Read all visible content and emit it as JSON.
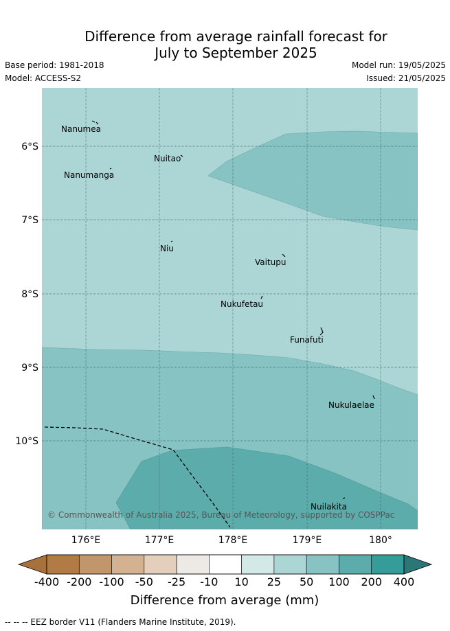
{
  "header": {
    "title_line1": "Difference from average rainfall forecast for",
    "title_line2": "July to September 2025",
    "base_period": "Base period: 1981-2018",
    "model": "Model: ACCESS-S2",
    "model_run": "Model run: 19/05/2025",
    "issued": "Issued: 21/05/2025"
  },
  "map": {
    "lon_range": [
      175.4,
      180.5
    ],
    "lat_range": [
      -5.2,
      -11.2
    ],
    "lat_ticks": [
      {
        "value": -6,
        "label": "6°S"
      },
      {
        "value": -7,
        "label": "7°S"
      },
      {
        "value": -8,
        "label": "8°S"
      },
      {
        "value": -9,
        "label": "9°S"
      },
      {
        "value": -10,
        "label": "10°S"
      }
    ],
    "lon_ticks": [
      {
        "value": 176,
        "label": "176°E"
      },
      {
        "value": 177,
        "label": "177°E"
      },
      {
        "value": 178,
        "label": "178°E"
      },
      {
        "value": 179,
        "label": "179°E"
      },
      {
        "value": 180,
        "label": "180°"
      }
    ],
    "islands": [
      {
        "name": "Nanumea",
        "lon": 176.1,
        "lat": -5.69
      },
      {
        "name": "Nuitao",
        "lon": 177.3,
        "lat": -6.11
      },
      {
        "name": "Nanumanga",
        "lon": 176.32,
        "lat": -6.29
      },
      {
        "name": "Niu",
        "lon": 177.17,
        "lat": -7.3
      },
      {
        "name": "Vaitupu",
        "lon": 178.68,
        "lat": -7.48
      },
      {
        "name": "Nukufetau",
        "lon": 178.37,
        "lat": -8.02
      },
      {
        "name": "Funafuti",
        "lon": 179.2,
        "lat": -8.52
      },
      {
        "name": "Nukulaelae",
        "lon": 179.83,
        "lat": -9.38
      },
      {
        "name": "Nuilakita",
        "lon": 179.52,
        "lat": -10.78
      }
    ],
    "copyright": "© Commonwealth of Australia 2025, Bureau of Meteorology, supported by COSPPac",
    "colors": {
      "band_25_50": "#acd6d5",
      "band_50_100": "#86c3c2",
      "band_100_200": "#5dacac",
      "grid": "#3f6f6d",
      "eez": "#000000"
    }
  },
  "colorbar": {
    "title": "Difference from average (mm)",
    "ticks": [
      "-400",
      "-200",
      "-100",
      "-50",
      "-25",
      "-10",
      "10",
      "25",
      "50",
      "100",
      "200",
      "400"
    ],
    "colors": [
      "#a8703a",
      "#b27a45",
      "#c2966b",
      "#d4b291",
      "#e4cfbc",
      "#edeae6",
      "#ffffff",
      "#d3e9e8",
      "#acd6d5",
      "#86c3c2",
      "#5dacac",
      "#369c99",
      "#2b7777"
    ]
  },
  "footnote": "-- -- -- EEZ border V11 (Flanders Marine Institute, 2019)."
}
